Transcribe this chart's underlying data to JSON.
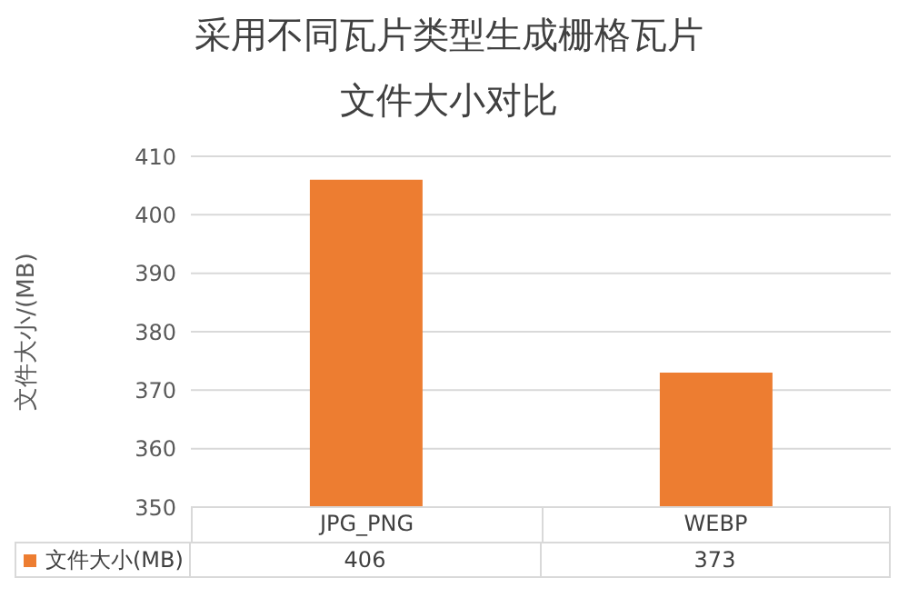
{
  "chart_data": {
    "type": "bar",
    "title": "采用不同瓦片类型生成栅格瓦片",
    "subtitle": "文件大小对比",
    "ylabel": "文件大小/(MB)",
    "categories": [
      "JPG_PNG",
      "WEBP"
    ],
    "series": [
      {
        "name": "文件大小(MB)",
        "color": "#ed7d31",
        "values": [
          406,
          373
        ]
      }
    ],
    "ylim": [
      350,
      410
    ],
    "yticks": [
      350,
      360,
      370,
      380,
      390,
      400,
      410
    ],
    "grid": "y",
    "data_labels": true,
    "legend": "bottom"
  }
}
